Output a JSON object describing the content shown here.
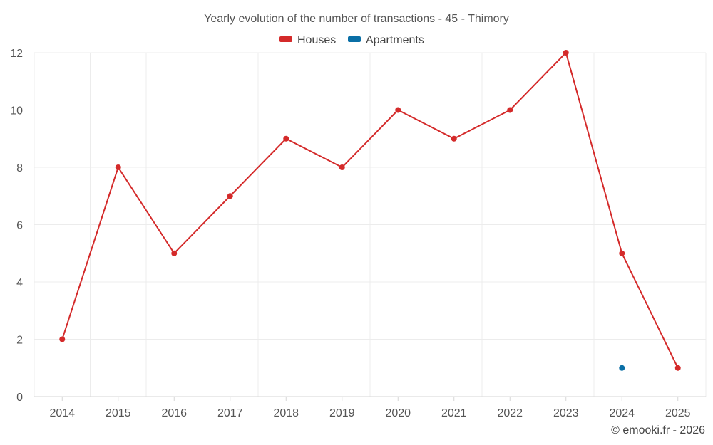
{
  "colors": {
    "houses": "#d42a2a",
    "apartments": "#0a6fa6"
  },
  "footer": "© emooki.fr - 2026",
  "chart_data": {
    "type": "line",
    "title": "Yearly evolution of the number of transactions - 45 - Thimory",
    "xlabel": "",
    "ylabel": "",
    "categories": [
      "2014",
      "2015",
      "2016",
      "2017",
      "2018",
      "2019",
      "2020",
      "2021",
      "2022",
      "2023",
      "2024",
      "2025"
    ],
    "ylim": [
      0,
      12
    ],
    "yticks": [
      0,
      2,
      4,
      6,
      8,
      10,
      12
    ],
    "grid": true,
    "legend_position": "top-center",
    "series": [
      {
        "name": "Houses",
        "color": "#d42a2a",
        "values": [
          2,
          8,
          5,
          7,
          9,
          8,
          10,
          9,
          10,
          12,
          5,
          1
        ]
      },
      {
        "name": "Apartments",
        "color": "#0a6fa6",
        "values": [
          null,
          null,
          null,
          null,
          null,
          null,
          null,
          null,
          null,
          null,
          1,
          null
        ]
      }
    ]
  }
}
